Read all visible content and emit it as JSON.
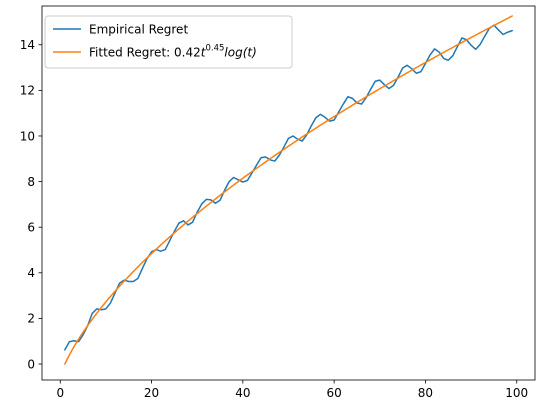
{
  "chart_data": {
    "type": "line",
    "title": "",
    "xlabel": "",
    "ylabel": "",
    "xlim": [
      -4,
      104
    ],
    "ylim": [
      -0.7,
      15.7
    ],
    "xticks": [
      0,
      20,
      40,
      60,
      80,
      100
    ],
    "yticks": [
      0,
      2,
      4,
      6,
      8,
      10,
      12,
      14
    ],
    "grid": false,
    "legend_position": "upper-left",
    "legend": {
      "empirical": "Empirical Regret",
      "fitted_prefix": "Fitted Regret: 0.42",
      "fitted_base": "t",
      "fitted_exp": "0.45",
      "fitted_log": "log",
      "fitted_arg": "(t)"
    },
    "series": [
      {
        "name": "Empirical Regret",
        "color": "#1f77b4",
        "x": [
          1,
          2,
          3,
          4,
          5,
          6,
          7,
          8,
          9,
          10,
          11,
          12,
          13,
          14,
          15,
          16,
          17,
          18,
          19,
          20,
          21,
          22,
          23,
          24,
          25,
          26,
          27,
          28,
          29,
          30,
          31,
          32,
          33,
          34,
          35,
          36,
          37,
          38,
          39,
          40,
          41,
          42,
          43,
          44,
          45,
          46,
          47,
          48,
          49,
          50,
          51,
          52,
          53,
          54,
          55,
          56,
          57,
          58,
          59,
          60,
          61,
          62,
          63,
          64,
          65,
          66,
          67,
          68,
          69,
          70,
          71,
          72,
          73,
          74,
          75,
          76,
          77,
          78,
          79,
          80,
          81,
          82,
          83,
          84,
          85,
          86,
          87,
          88,
          89,
          90,
          91,
          92,
          93,
          94,
          95,
          96,
          97,
          98,
          99
        ],
        "y": [
          0.62,
          0.98,
          1.02,
          0.98,
          1.28,
          1.68,
          2.22,
          2.42,
          2.38,
          2.42,
          2.68,
          3.12,
          3.55,
          3.68,
          3.62,
          3.62,
          3.75,
          4.2,
          4.62,
          4.92,
          5.02,
          4.95,
          5.02,
          5.42,
          5.82,
          6.18,
          6.28,
          6.1,
          6.22,
          6.66,
          7.02,
          7.22,
          7.2,
          7.05,
          7.18,
          7.62,
          8.0,
          8.18,
          8.08,
          7.98,
          8.05,
          8.38,
          8.72,
          9.05,
          9.08,
          8.95,
          8.9,
          9.16,
          9.52,
          9.9,
          10.0,
          9.86,
          9.78,
          10.05,
          10.45,
          10.8,
          10.95,
          10.82,
          10.65,
          10.7,
          11.05,
          11.4,
          11.72,
          11.65,
          11.45,
          11.4,
          11.68,
          12.05,
          12.4,
          12.45,
          12.25,
          12.08,
          12.22,
          12.58,
          12.98,
          13.1,
          12.95,
          12.75,
          12.82,
          13.18,
          13.55,
          13.82,
          13.68,
          13.4,
          13.32,
          13.52,
          13.92,
          14.3,
          14.22,
          13.98,
          13.8,
          14.02,
          14.38,
          14.72,
          14.86,
          14.65,
          14.45,
          14.55,
          14.62
        ]
      },
      {
        "name": "Fitted Regret: 0.42t^0.45 log(t)",
        "color": "#ff7f0e",
        "formula": {
          "a": 0.42,
          "b": 0.45,
          "x_start": 1,
          "x_end": 99
        }
      }
    ]
  }
}
